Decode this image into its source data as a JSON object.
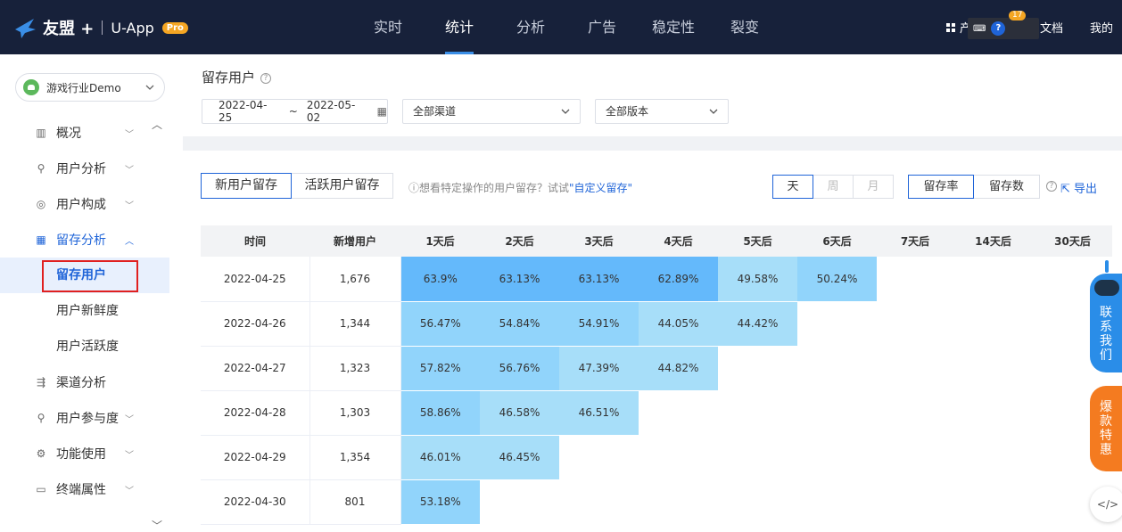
{
  "header": {
    "brand": "友盟 +",
    "product": "U-App",
    "badge": "Pro",
    "nav": [
      "实时",
      "统计",
      "分析",
      "广告",
      "稳定性",
      "裂变"
    ],
    "active_nav": 1,
    "products_label": "产品",
    "docs_label": "文档",
    "mine_label": "我的",
    "notification_count": "17"
  },
  "sidebar": {
    "app_name": "游戏行业Demo",
    "items": [
      {
        "label": "概况",
        "icon": "bar-chart-icon"
      },
      {
        "label": "用户分析",
        "icon": "user-analysis-icon"
      },
      {
        "label": "用户构成",
        "icon": "user-composition-icon"
      },
      {
        "label": "留存分析",
        "icon": "retention-icon"
      },
      {
        "label": "渠道分析",
        "icon": "channel-icon"
      },
      {
        "label": "用户参与度",
        "icon": "engagement-icon"
      },
      {
        "label": "功能使用",
        "icon": "feature-icon"
      },
      {
        "label": "终端属性",
        "icon": "device-icon"
      }
    ],
    "sub_items": [
      "留存用户",
      "用户新鲜度",
      "用户活跃度"
    ]
  },
  "filters": {
    "title": "留存用户",
    "date_start": "2022-04-25",
    "date_sep": "~",
    "date_end": "2022-05-02",
    "channel": "全部渠道",
    "version": "全部版本"
  },
  "panel": {
    "tabs": [
      "新用户留存",
      "活跃用户留存"
    ],
    "hint_prefix": "ⓘ想看特定操作的用户留存？试试",
    "hint_link": "\"自定义留存\"",
    "periods": [
      "天",
      "周",
      "月"
    ],
    "metrics": [
      "留存率",
      "留存数"
    ],
    "export_label": "导出"
  },
  "table": {
    "headers": [
      "时间",
      "新增用户",
      "1天后",
      "2天后",
      "3天后",
      "4天后",
      "5天后",
      "6天后",
      "7天后",
      "14天后",
      "30天后"
    ],
    "rows": [
      {
        "date": "2022-04-25",
        "new": "1,676",
        "rates": [
          "63.9%",
          "63.13%",
          "63.13%",
          "62.89%",
          "49.58%",
          "50.24%"
        ]
      },
      {
        "date": "2022-04-26",
        "new": "1,344",
        "rates": [
          "56.47%",
          "54.84%",
          "54.91%",
          "44.05%",
          "44.42%"
        ]
      },
      {
        "date": "2022-04-27",
        "new": "1,323",
        "rates": [
          "57.82%",
          "56.76%",
          "47.39%",
          "44.82%"
        ]
      },
      {
        "date": "2022-04-28",
        "new": "1,303",
        "rates": [
          "58.86%",
          "46.58%",
          "46.51%"
        ]
      },
      {
        "date": "2022-04-29",
        "new": "1,354",
        "rates": [
          "46.01%",
          "46.45%"
        ]
      },
      {
        "date": "2022-04-30",
        "new": "801",
        "rates": [
          "53.18%"
        ]
      }
    ]
  },
  "widgets": {
    "contact": "联系我们",
    "promo": "爆款特惠"
  },
  "colors": {
    "topbar": "#17213a",
    "accent": "#1f64d8",
    "heat_high": "#64b9fb",
    "heat_mid": "#91d4fb",
    "heat_low": "#a7def9"
  }
}
